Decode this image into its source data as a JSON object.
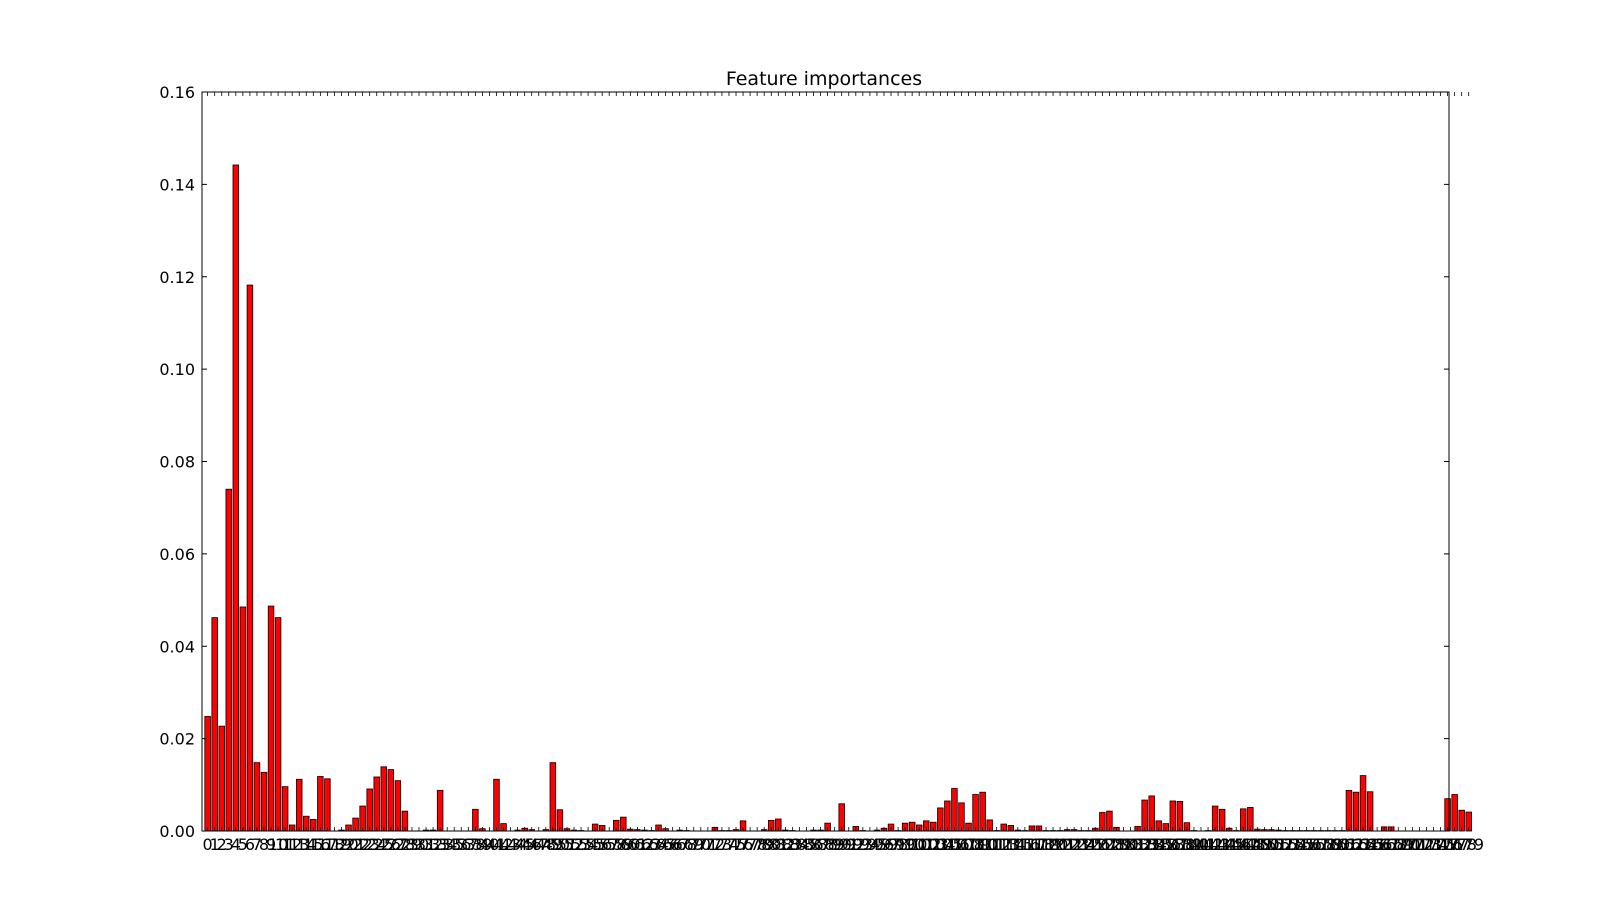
{
  "chart_data": {
    "type": "bar",
    "title": "Feature importances",
    "xlabel": "",
    "ylabel": "",
    "ylim": [
      0,
      0.16
    ],
    "yticks": [
      "0.00",
      "0.02",
      "0.04",
      "0.06",
      "0.08",
      "0.10",
      "0.12",
      "0.14",
      "0.16"
    ],
    "xlim": [
      -0.4,
      176.6
    ],
    "bar_color": "#ff0000",
    "edge_color": "#000000",
    "grid": false,
    "legend": "none",
    "values": [
      0.0248,
      0.0462,
      0.0227,
      0.074,
      0.1442,
      0.0485,
      0.1182,
      0.0148,
      0.0127,
      0.0487,
      0.0462,
      0.0096,
      0.0013,
      0.0112,
      0.0032,
      0.0025,
      0.0118,
      0.0113,
      0.0,
      0.0002,
      0.0013,
      0.0028,
      0.0054,
      0.0091,
      0.0117,
      0.0139,
      0.0133,
      0.0109,
      0.0043,
      0.0,
      0.0,
      0.0002,
      0.0002,
      0.0088,
      0.0,
      0.0,
      0.0,
      0.0,
      0.0047,
      0.0005,
      0.0,
      0.0112,
      0.0016,
      0.0,
      0.0002,
      0.0006,
      0.0003,
      0.0,
      0.0003,
      0.0148,
      0.0046,
      0.0005,
      0.0002,
      0.0001,
      0.0,
      0.0015,
      0.0012,
      0.0,
      0.0023,
      0.003,
      0.0004,
      0.0003,
      0.0002,
      0.0001,
      0.0013,
      0.0005,
      0.0,
      0.0002,
      0.0001,
      0.0,
      0.0,
      0.0,
      0.0008,
      0.0001,
      0.0001,
      0.0003,
      0.0022,
      0.0,
      0.0,
      0.0003,
      0.0023,
      0.0026,
      0.0002,
      0.0001,
      0.0,
      0.0,
      0.0002,
      0.0002,
      0.0017,
      0.0,
      0.0059,
      0.0,
      0.001,
      0.0001,
      0.0,
      0.0002,
      0.0006,
      0.0015,
      0.0001,
      0.0017,
      0.0019,
      0.0013,
      0.0022,
      0.0019,
      0.005,
      0.0065,
      0.0092,
      0.0061,
      0.0017,
      0.0079,
      0.0084,
      0.0024,
      0.0001,
      0.0015,
      0.0012,
      0.0002,
      0.0001,
      0.0011,
      0.0011,
      0.0001,
      0.0001,
      0.0001,
      0.0003,
      0.0003,
      0.0001,
      0.0001,
      0.0006,
      0.004,
      0.0043,
      0.0008,
      0.0,
      0.0,
      0.001,
      0.0067,
      0.0076,
      0.0022,
      0.0016,
      0.0065,
      0.0064,
      0.0018,
      0.0001,
      0.0,
      0.0001,
      0.0054,
      0.0047,
      0.0006,
      0.0001,
      0.0048,
      0.0051,
      0.0004,
      0.0003,
      0.0003,
      0.0002,
      0.0001,
      0.0001,
      0.0001,
      0.0001,
      0.0001,
      0.0001,
      0.0001,
      0.0001,
      0.0001,
      0.0088,
      0.0084,
      0.012,
      0.0085,
      0.0,
      0.0009,
      0.0009,
      0.0,
      0.0,
      0.0,
      0.0,
      0.0,
      0.0,
      0.0,
      0.007,
      0.0079,
      0.0045,
      0.0041
    ]
  }
}
